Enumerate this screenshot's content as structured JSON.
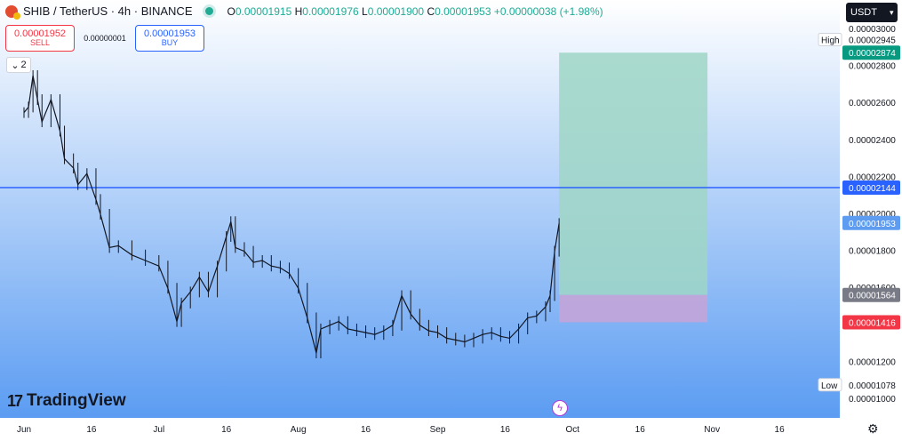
{
  "header": {
    "symbol": "SHIB / TetherUS · 4h · BINANCE",
    "o_label": "O",
    "o_value": "0.00001915",
    "h_label": "H",
    "h_value": "0.00001976",
    "l_label": "L",
    "l_value": "0.00001900",
    "c_label": "C",
    "c_value": "0.00001953",
    "change": "+0.00000038 (+1.98%)"
  },
  "trade": {
    "sell_price": "0.00001952",
    "sell_label": "SELL",
    "spread": "0.00000001",
    "buy_price": "0.00001953",
    "buy_label": "BUY"
  },
  "indicators_toggle": {
    "count": "2"
  },
  "currency": {
    "label": "USDT"
  },
  "watermark": {
    "text": "TradingView"
  },
  "labels": {
    "high": "High",
    "low": "Low"
  },
  "colors": {
    "background_top": "#ffffff",
    "background_bottom": "#5b9cf2",
    "candle": "#131722",
    "price_line": "#2962ff",
    "target_zone": "#9fd6c6",
    "stop_zone": "#c7a3d6",
    "target_tag": "#089981",
    "stop_tag": "#f23645",
    "current_tag": "#5d9cf0",
    "entry_tag": "#787b86"
  },
  "chart_data": {
    "type": "candlestick",
    "title": "SHIB / TetherUS · 4h · BINANCE",
    "ylim": [
      1e-05,
      3e-05
    ],
    "y_ticks": [
      "0.00003000",
      "0.00002800",
      "0.00002600",
      "0.00002400",
      "0.00002200",
      "0.00002000",
      "0.00001800",
      "0.00001600",
      "0.00001400",
      "0.00001200",
      "0.00001000"
    ],
    "y_tick_values": [
      3e-05,
      2.8e-05,
      2.6e-05,
      2.4e-05,
      2.2e-05,
      2e-05,
      1.8e-05,
      1.6e-05,
      1.4e-05,
      1.2e-05,
      1e-05
    ],
    "x_ticks": [
      "Jun",
      "16",
      "Jul",
      "16",
      "Aug",
      "16",
      "Sep",
      "16",
      "Oct",
      "16",
      "Nov",
      "16"
    ],
    "price_labels": {
      "high": "0.00002945",
      "target": "0.00002874",
      "horizontal_line": "0.00002144",
      "current": "0.00001953",
      "entry": "0.00001564",
      "stop": "0.00001416",
      "low": "0.00001078"
    },
    "position_tool": {
      "entry": 1.564e-05,
      "target": 2.874e-05,
      "stop": 1.416e-05,
      "start": "Sep 28",
      "end": "Oct 31"
    },
    "horizontal_line": 2.144e-05,
    "price_path": [
      {
        "d": "Jun 1",
        "c": 2.55e-05
      },
      {
        "d": "Jun 2",
        "c": 2.58e-05
      },
      {
        "d": "Jun 3",
        "c": 2.75e-05
      },
      {
        "d": "Jun 4",
        "c": 2.62e-05
      },
      {
        "d": "Jun 5",
        "c": 2.5e-05
      },
      {
        "d": "Jun 7",
        "c": 2.62e-05
      },
      {
        "d": "Jun 9",
        "c": 2.45e-05
      },
      {
        "d": "Jun 10",
        "c": 2.3e-05
      },
      {
        "d": "Jun 12",
        "c": 2.25e-05
      },
      {
        "d": "Jun 13",
        "c": 2.16e-05
      },
      {
        "d": "Jun 15",
        "c": 2.22e-05
      },
      {
        "d": "Jun 17",
        "c": 2.08e-05
      },
      {
        "d": "Jun 18",
        "c": 2e-05
      },
      {
        "d": "Jun 20",
        "c": 1.82e-05
      },
      {
        "d": "Jun 22",
        "c": 1.83e-05
      },
      {
        "d": "Jun 25",
        "c": 1.78e-05
      },
      {
        "d": "Jun 28",
        "c": 1.75e-05
      },
      {
        "d": "Jul 1",
        "c": 1.72e-05
      },
      {
        "d": "Jul 3",
        "c": 1.6e-05
      },
      {
        "d": "Jul 5",
        "c": 1.42e-05
      },
      {
        "d": "Jul 6",
        "c": 1.52e-05
      },
      {
        "d": "Jul 8",
        "c": 1.58e-05
      },
      {
        "d": "Jul 10",
        "c": 1.66e-05
      },
      {
        "d": "Jul 12",
        "c": 1.58e-05
      },
      {
        "d": "Jul 14",
        "c": 1.72e-05
      },
      {
        "d": "Jul 16",
        "c": 1.88e-05
      },
      {
        "d": "Jul 17",
        "c": 1.96e-05
      },
      {
        "d": "Jul 18",
        "c": 1.82e-05
      },
      {
        "d": "Jul 20",
        "c": 1.8e-05
      },
      {
        "d": "Jul 22",
        "c": 1.74e-05
      },
      {
        "d": "Jul 24",
        "c": 1.75e-05
      },
      {
        "d": "Jul 26",
        "c": 1.72e-05
      },
      {
        "d": "Jul 28",
        "c": 1.71e-05
      },
      {
        "d": "Jul 30",
        "c": 1.68e-05
      },
      {
        "d": "Aug 1",
        "c": 1.6e-05
      },
      {
        "d": "Aug 3",
        "c": 1.44e-05
      },
      {
        "d": "Aug 5",
        "c": 1.25e-05
      },
      {
        "d": "Aug 6",
        "c": 1.38e-05
      },
      {
        "d": "Aug 8",
        "c": 1.4e-05
      },
      {
        "d": "Aug 10",
        "c": 1.42e-05
      },
      {
        "d": "Aug 12",
        "c": 1.38e-05
      },
      {
        "d": "Aug 14",
        "c": 1.37e-05
      },
      {
        "d": "Aug 16",
        "c": 1.36e-05
      },
      {
        "d": "Aug 18",
        "c": 1.35e-05
      },
      {
        "d": "Aug 20",
        "c": 1.37e-05
      },
      {
        "d": "Aug 22",
        "c": 1.4e-05
      },
      {
        "d": "Aug 24",
        "c": 1.56e-05
      },
      {
        "d": "Aug 26",
        "c": 1.46e-05
      },
      {
        "d": "Aug 28",
        "c": 1.4e-05
      },
      {
        "d": "Aug 30",
        "c": 1.37e-05
      },
      {
        "d": "Sep 1",
        "c": 1.36e-05
      },
      {
        "d": "Sep 3",
        "c": 1.33e-05
      },
      {
        "d": "Sep 5",
        "c": 1.32e-05
      },
      {
        "d": "Sep 7",
        "c": 1.31e-05
      },
      {
        "d": "Sep 9",
        "c": 1.33e-05
      },
      {
        "d": "Sep 11",
        "c": 1.35e-05
      },
      {
        "d": "Sep 13",
        "c": 1.36e-05
      },
      {
        "d": "Sep 15",
        "c": 1.34e-05
      },
      {
        "d": "Sep 17",
        "c": 1.33e-05
      },
      {
        "d": "Sep 19",
        "c": 1.38e-05
      },
      {
        "d": "Sep 21",
        "c": 1.44e-05
      },
      {
        "d": "Sep 23",
        "c": 1.45e-05
      },
      {
        "d": "Sep 25",
        "c": 1.5e-05
      },
      {
        "d": "Sep 26",
        "c": 1.56e-05
      },
      {
        "d": "Sep 27",
        "c": 1.8e-05
      },
      {
        "d": "Sep 28",
        "c": 1.95e-05
      }
    ]
  }
}
